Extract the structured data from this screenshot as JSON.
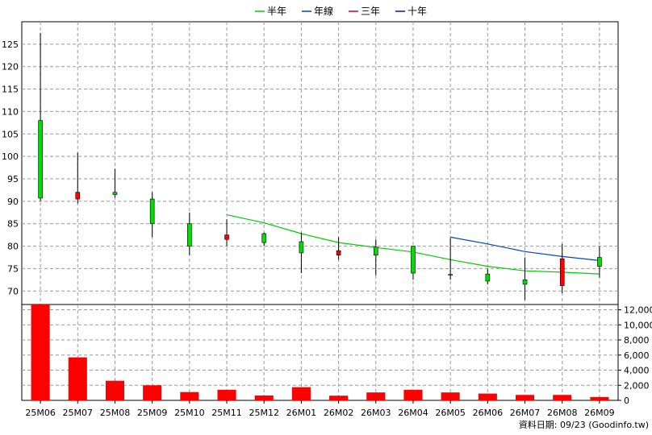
{
  "chart_data": {
    "type": "candlestick",
    "categories": [
      "25M06",
      "25M07",
      "25M08",
      "25M09",
      "25M10",
      "25M11",
      "25M12",
      "26M01",
      "26M02",
      "26M03",
      "26M04",
      "26M05",
      "26M06",
      "26M07",
      "26M08",
      "26M09"
    ],
    "ohlc": [
      {
        "open": 90.7,
        "high": 127.5,
        "low": 90.0,
        "close": 108.0
      },
      {
        "open": 92.0,
        "high": 100.8,
        "low": 89.5,
        "close": 90.5
      },
      {
        "open": 91.5,
        "high": 97.2,
        "low": 90.8,
        "close": 92.0
      },
      {
        "open": 85.0,
        "high": 92.0,
        "low": 82.0,
        "close": 90.5
      },
      {
        "open": 80.0,
        "high": 87.5,
        "low": 78.0,
        "close": 85.0
      },
      {
        "open": 82.5,
        "high": 86.0,
        "low": 80.0,
        "close": 81.5
      },
      {
        "open": 80.8,
        "high": 83.0,
        "low": 80.0,
        "close": 82.8
      },
      {
        "open": 78.5,
        "high": 83.0,
        "low": 74.0,
        "close": 81.0
      },
      {
        "open": 79.0,
        "high": 82.0,
        "low": 77.0,
        "close": 78.0
      },
      {
        "open": 78.0,
        "high": 81.5,
        "low": 73.5,
        "close": 79.8
      },
      {
        "open": 74.0,
        "high": 80.0,
        "low": 72.5,
        "close": 80.0
      },
      {
        "open": 73.5,
        "high": 81.8,
        "low": 72.5,
        "close": 73.7
      },
      {
        "open": 72.2,
        "high": 75.0,
        "low": 71.5,
        "close": 73.8
      },
      {
        "open": 71.5,
        "high": 77.5,
        "low": 68.0,
        "close": 72.5
      },
      {
        "open": 77.2,
        "high": 80.5,
        "low": 69.5,
        "close": 71.2
      },
      {
        "open": 75.5,
        "high": 80.0,
        "low": 73.0,
        "close": 77.5
      }
    ],
    "moving_averages": [
      {
        "name": "半年",
        "color": "#00cc00",
        "start_index": 5,
        "values": [
          87.0,
          85.2,
          82.8,
          80.8,
          79.7,
          78.7,
          77.0,
          75.5,
          74.5,
          74.2,
          73.8
        ]
      },
      {
        "name": "年線",
        "color": "#0044cc",
        "start_index": 11,
        "values": [
          82.0,
          80.5,
          78.8,
          77.7,
          76.8
        ]
      },
      {
        "name": "三年",
        "color": "#cc0033",
        "start_index": 0,
        "values": []
      },
      {
        "name": "十年",
        "color": "#330099",
        "start_index": 0,
        "values": []
      }
    ],
    "price_axis": {
      "min": 67,
      "max": 130,
      "ticks": [
        70,
        75,
        80,
        85,
        90,
        95,
        100,
        105,
        110,
        115,
        120,
        125
      ]
    },
    "volume": [
      12700,
      5700,
      2600,
      2000,
      1100,
      1400,
      650,
      1750,
      620,
      1050,
      1400,
      1050,
      900,
      720,
      720,
      450
    ],
    "volume_color": "#ff0000",
    "volume_axis": {
      "min": 0,
      "max": 12700,
      "ticks": [
        0,
        2000,
        4000,
        6000,
        8000,
        10000,
        12000
      ],
      "tick_labels": [
        "0",
        "2,000",
        "4,000",
        "6,000",
        "8,000",
        "10,000",
        "12,000"
      ]
    },
    "up_color": "#00dd00",
    "down_color": "#ff0000",
    "grid": true,
    "legend_position": "top-center"
  },
  "footer": {
    "source_text": "資料日期: 09/23  (Goodinfo.tw)"
  }
}
